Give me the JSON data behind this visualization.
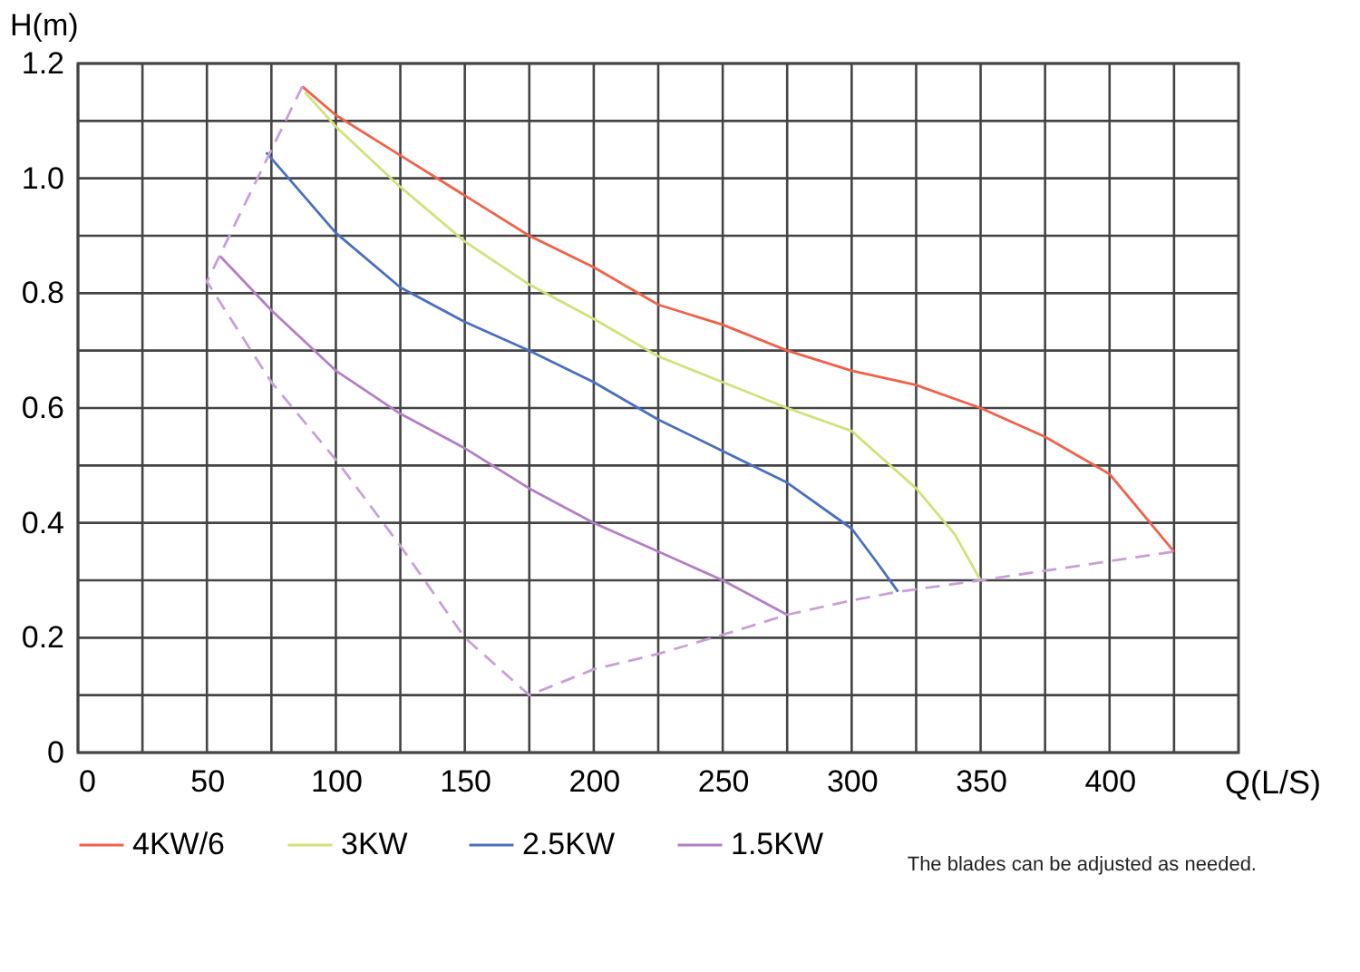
{
  "chart_data": {
    "type": "line",
    "xlabel": "Q(L/S)",
    "ylabel": "H(m)",
    "xlim": [
      0,
      450
    ],
    "ylim": [
      0,
      1.2
    ],
    "xticks": [
      0,
      {
        "value": 25,
        "label": null
      },
      50,
      {
        "value": 75,
        "label": null
      },
      100,
      {
        "value": 125,
        "label": null
      },
      150,
      {
        "value": 175,
        "label": null
      },
      200,
      {
        "value": 225,
        "label": null
      },
      250,
      {
        "value": 275,
        "label": null
      },
      300,
      {
        "value": 325,
        "label": null
      },
      350,
      {
        "value": 375,
        "label": null
      },
      400,
      {
        "value": 425,
        "label": null
      }
    ],
    "yticks": [
      0,
      {
        "value": 0.1,
        "label": null
      },
      0.2,
      {
        "value": 0.3,
        "label": null
      },
      0.4,
      {
        "value": 0.5,
        "label": null
      },
      0.6,
      {
        "value": 0.7,
        "label": null
      },
      0.8,
      {
        "value": 0.9,
        "label": null
      },
      {
        "value": 1,
        "label": "1.0"
      },
      {
        "value": 1.1,
        "label": null
      },
      1.2
    ],
    "grid": true,
    "legend": "bottom",
    "marker": "none",
    "annotations": [
      "The blades can be adjusted as needed."
    ],
    "series": [
      {
        "name": "4KW/6",
        "color": "#f0614a",
        "line_style": "solid",
        "x": [
          87,
          100,
          125,
          150,
          175,
          200,
          225,
          250,
          275,
          300,
          325,
          350,
          375,
          400,
          425
        ],
        "values": [
          1.16,
          1.11,
          1.04,
          0.97,
          0.9,
          0.845,
          0.78,
          0.745,
          0.7,
          0.665,
          0.64,
          0.6,
          0.55,
          0.485,
          0.35
        ]
      },
      {
        "name": "3KW",
        "color": "#d4e07a",
        "line_style": "solid",
        "x": [
          88,
          100,
          125,
          150,
          175,
          200,
          225,
          250,
          275,
          300,
          325,
          340,
          350
        ],
        "values": [
          1.15,
          1.09,
          0.985,
          0.89,
          0.815,
          0.755,
          0.69,
          0.645,
          0.6,
          0.56,
          0.46,
          0.38,
          0.3
        ]
      },
      {
        "name": "2.5KW",
        "color": "#4a6fc0",
        "line_style": "solid",
        "x": [
          73,
          100,
          125,
          150,
          175,
          200,
          225,
          250,
          275,
          300,
          310,
          318
        ],
        "values": [
          1.045,
          0.905,
          0.81,
          0.75,
          0.7,
          0.645,
          0.58,
          0.525,
          0.47,
          0.39,
          0.33,
          0.28
        ]
      },
      {
        "name": "1.5KW",
        "color": "#b47fc4",
        "line_style": "solid",
        "x": [
          55,
          75,
          100,
          125,
          150,
          175,
          200,
          225,
          250,
          275
        ],
        "values": [
          0.865,
          0.77,
          0.665,
          0.59,
          0.53,
          0.46,
          0.4,
          0.35,
          0.3,
          0.24
        ]
      },
      {
        "color": "#c9a0d6",
        "line_style": "dashed",
        "x": [
          87,
          50,
          75,
          100,
          125,
          150,
          175,
          200,
          225,
          250,
          275,
          300,
          318,
          350,
          425
        ],
        "values": [
          1.16,
          0.82,
          0.645,
          0.51,
          0.36,
          0.2,
          0.1,
          0.145,
          0.172,
          0.205,
          0.24,
          0.265,
          0.28,
          0.3,
          0.35
        ]
      }
    ]
  }
}
